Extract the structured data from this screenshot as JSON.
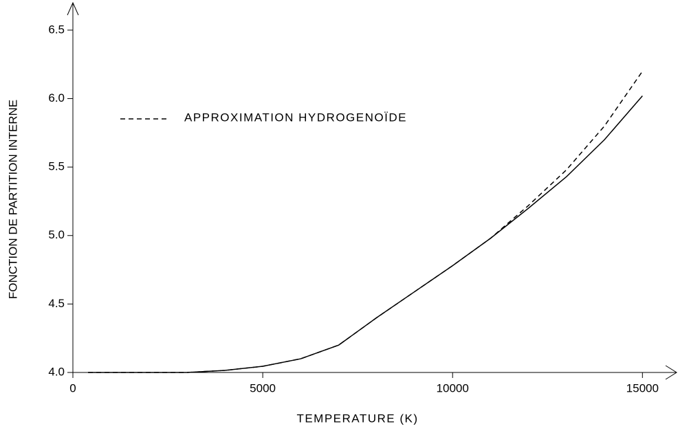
{
  "chart_data": {
    "type": "line",
    "xlabel": "TEMPERATURE (K)",
    "ylabel": "FONCTION DE PARTITION INTERNE",
    "x": [
      400,
      1000,
      2000,
      3000,
      4000,
      5000,
      6000,
      7000,
      8000,
      9000,
      10000,
      11000,
      12000,
      13000,
      14000,
      15000
    ],
    "series": [
      {
        "color": "#000000",
        "dash": false,
        "values": [
          4.0,
          4.0,
          4.0,
          4.0,
          4.015,
          4.045,
          4.1,
          4.2,
          4.4,
          4.59,
          4.78,
          4.98,
          5.2,
          5.43,
          5.7,
          6.02
        ]
      },
      {
        "name": "APPROXIMATION HYDROGENOÏDE",
        "color": "#000000",
        "dash": true,
        "values": [
          4.0,
          4.0,
          4.0,
          4.0,
          4.015,
          4.045,
          4.1,
          4.2,
          4.4,
          4.59,
          4.78,
          4.98,
          5.22,
          5.48,
          5.8,
          6.2
        ]
      }
    ],
    "xlim": [
      0,
      15900
    ],
    "ylim": [
      4.0,
      6.7
    ],
    "xticks": [
      0,
      5000,
      10000,
      15000
    ],
    "yticks": [
      {
        "value": 4.0,
        "label": "4.0"
      },
      4.5,
      {
        "value": 5.0,
        "label": "5.0"
      },
      5.5,
      {
        "value": 6.0,
        "label": "6.0"
      },
      6.5
    ],
    "legend": "upper left"
  }
}
